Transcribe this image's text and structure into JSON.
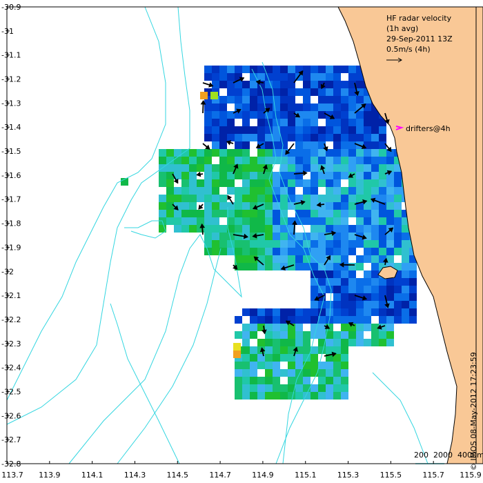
{
  "title_lines": [
    "HF radar velocity",
    "(1h avg)",
    "29-Sep-2011 13Z",
    "0.5m/s (4h)"
  ],
  "drifter_label": "drifters@4h",
  "scale": {
    "labels": [
      "200",
      "2000",
      "4000m"
    ]
  },
  "credit": "© IMOS 08-May-2012 17:23:59",
  "x_ticks": [
    "113.7",
    "113.9",
    "114.1",
    "114.3",
    "114.5",
    "114.7",
    "114.9",
    "115.1",
    "115.3",
    "115.5",
    "115.7",
    "115.9"
  ],
  "y_ticks": [
    "-30.9",
    "-31",
    "-31.1",
    "-31.2",
    "-31.3",
    "-31.4",
    "-31.5",
    "-31.6",
    "-31.7",
    "-31.8",
    "-31.9",
    "-32",
    "-32.1",
    "-32.2",
    "-32.3",
    "-32.4",
    "-32.5",
    "-32.6",
    "-32.7",
    "-32.8"
  ],
  "colors": {
    "land": "#f9c896",
    "contour": "#33d6e0",
    "drifter": "#ff00ff"
  }
}
